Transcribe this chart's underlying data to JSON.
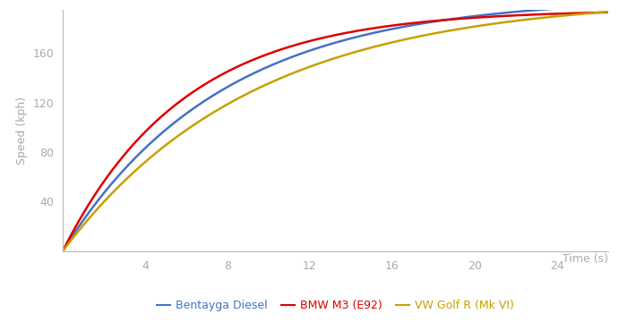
{
  "title": "",
  "xlabel": "Time (s)",
  "ylabel": "Speed (kph)",
  "xlim": [
    0,
    26.5
  ],
  "ylim": [
    0,
    195
  ],
  "yticks": [
    40,
    80,
    120,
    160
  ],
  "xticks": [
    4,
    8,
    12,
    16,
    20,
    24
  ],
  "background_color": "#ffffff",
  "axis_color": "#bbbbbb",
  "label_color": "#aaaaaa",
  "lines": [
    {
      "label": "Bentayga Diesel",
      "color": "#4472c4",
      "k": 0.13,
      "vmax": 205
    },
    {
      "label": "BMW M3 (E92)",
      "color": "#dd0000",
      "k": 0.17,
      "vmax": 195
    },
    {
      "label": "VW Golf R (Mk VI)",
      "color": "#c8a000",
      "k": 0.108,
      "vmax": 205
    }
  ],
  "legend_colors": [
    "#4472c4",
    "#dd0000",
    "#c8a000"
  ],
  "legend_labels": [
    "Bentayga Diesel",
    "BMW M3 (E92)",
    "VW Golf R (Mk VI)"
  ],
  "legend_fontsize": 9,
  "axis_label_fontsize": 9,
  "tick_fontsize": 9,
  "linewidth": 1.8
}
